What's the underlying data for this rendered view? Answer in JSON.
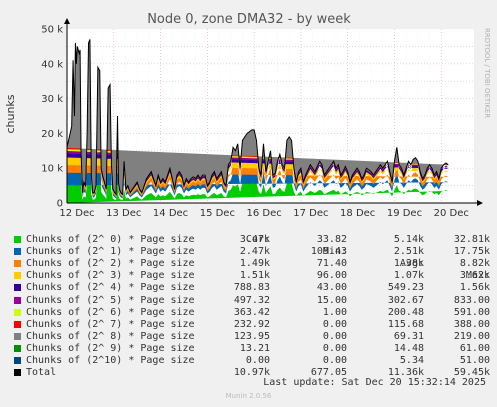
{
  "chart_data": {
    "type": "area",
    "title": "Node 0, zone DMA32 - by week",
    "ylabel": "chunks",
    "ylim": [
      0,
      50000
    ],
    "yticks": [
      {
        "value": 0,
        "label": "0"
      },
      {
        "value": 10000,
        "label": "10 k"
      },
      {
        "value": 20000,
        "label": "20 k"
      },
      {
        "value": 30000,
        "label": "30 k"
      },
      {
        "value": 40000,
        "label": "40 k"
      },
      {
        "value": 50000,
        "label": "50 k"
      }
    ],
    "xlim": [
      0,
      8.7
    ],
    "xticks": [
      {
        "value": 0.0,
        "label": "12 Dec"
      },
      {
        "value": 1.0,
        "label": "13 Dec"
      },
      {
        "value": 2.0,
        "label": "14 Dec"
      },
      {
        "value": 3.0,
        "label": "15 Dec"
      },
      {
        "value": 4.0,
        "label": "16 Dec"
      },
      {
        "value": 5.0,
        "label": "17 Dec"
      },
      {
        "value": 6.0,
        "label": "18 Dec"
      },
      {
        "value": 7.0,
        "label": "19 Dec"
      },
      {
        "value": 8.0,
        "label": "20 Dec"
      }
    ],
    "grid": true,
    "total_profile_x": [
      0.0,
      0.05,
      0.1,
      0.13,
      0.16,
      0.18,
      0.2,
      0.22,
      0.24,
      0.26,
      0.28,
      0.3,
      0.33,
      0.36,
      0.4,
      0.43,
      0.46,
      0.49,
      0.52,
      0.55,
      0.58,
      0.62,
      0.66,
      0.7,
      0.73,
      0.76,
      0.8,
      0.84,
      0.88,
      0.92,
      0.95,
      0.98,
      1.02,
      1.05,
      1.08,
      1.1,
      1.12,
      1.15,
      1.19,
      1.22,
      1.26,
      1.3,
      1.35,
      1.4,
      1.45,
      1.5,
      1.55,
      1.6,
      1.65,
      1.7,
      1.75,
      1.8,
      1.85,
      1.9,
      1.95,
      2.0,
      2.05,
      2.1,
      2.15,
      2.2,
      2.25,
      2.3,
      2.35,
      2.4,
      2.45,
      2.5,
      2.55,
      2.6,
      2.65,
      2.7,
      2.75,
      2.8,
      2.85,
      2.9,
      2.95,
      3.0,
      3.05,
      3.1,
      3.15,
      3.2,
      3.25,
      3.3,
      3.35,
      3.4,
      3.45,
      3.5,
      3.55,
      3.6,
      3.65,
      3.7,
      3.75,
      3.8,
      3.85,
      3.9,
      3.95,
      4.0,
      4.05,
      4.1,
      4.15,
      4.2,
      4.25,
      4.3,
      4.35,
      4.4,
      4.45,
      4.5,
      4.55,
      4.6,
      4.65,
      4.7,
      4.75,
      4.8,
      4.85,
      4.9,
      4.95,
      5.0,
      5.05,
      5.1,
      5.15,
      5.2,
      5.25,
      5.3,
      5.35,
      5.4,
      5.45,
      5.5,
      5.55,
      5.6,
      5.65,
      5.7,
      5.75,
      5.8,
      5.85,
      5.9,
      5.95,
      6.0,
      6.05,
      6.1,
      6.15,
      6.2,
      6.25,
      6.3,
      6.35,
      6.4,
      6.45,
      6.5,
      6.55,
      6.6,
      6.65,
      6.7,
      6.75,
      6.8,
      6.85,
      6.9,
      6.95,
      7.0,
      7.05,
      7.1,
      7.15,
      7.2,
      7.25,
      7.3,
      7.35,
      7.4,
      7.45,
      7.5,
      7.55,
      7.6,
      7.65,
      7.7,
      7.75,
      7.8,
      7.85,
      7.9,
      7.95,
      8.0,
      8.05,
      8.1,
      8.15,
      8.2,
      8.25,
      8.3,
      8.35,
      8.4,
      8.45,
      8.5
    ],
    "total_profile_y": [
      16000,
      19000,
      22000,
      41000,
      25000,
      46000,
      40000,
      45000,
      44000,
      43000,
      44000,
      15000,
      3000,
      6000,
      5000,
      20000,
      46000,
      47000,
      8000,
      3000,
      3000,
      5000,
      39000,
      38000,
      10000,
      8000,
      6000,
      4000,
      33000,
      34000,
      11000,
      4000,
      3000,
      2500,
      25000,
      6000,
      4000,
      3000,
      2500,
      12000,
      4000,
      5000,
      3000,
      4000,
      5000,
      6000,
      4000,
      3000,
      5000,
      7000,
      8000,
      9000,
      7000,
      5000,
      8000,
      6000,
      7000,
      6000,
      8000,
      10000,
      7000,
      4000,
      8000,
      9000,
      8000,
      5000,
      7000,
      6000,
      7000,
      7500,
      7000,
      8000,
      7000,
      8000,
      8000,
      5000,
      6000,
      8000,
      9000,
      7000,
      8000,
      9000,
      6000,
      5000,
      11000,
      12000,
      16000,
      15000,
      17000,
      10000,
      18000,
      19000,
      20000,
      20500,
      21000,
      21000,
      18000,
      10000,
      8000,
      17000,
      9000,
      12000,
      15000,
      8000,
      8500,
      12000,
      14000,
      11000,
      10000,
      18000,
      19000,
      18000,
      10000,
      6000,
      9000,
      10000,
      6000,
      8000,
      9500,
      11000,
      10000,
      9000,
      10500,
      12000,
      11000,
      8000,
      9000,
      10000,
      11000,
      12000,
      10000,
      11000,
      8000,
      9000,
      10500,
      9000,
      6000,
      8000,
      9000,
      10000,
      9000,
      7000,
      8000,
      10000,
      9500,
      9000,
      8000,
      9000,
      10000,
      11000,
      10000,
      11000,
      12000,
      9000,
      6000,
      12000,
      16000,
      11000,
      10000,
      8000,
      10000,
      12000,
      11000,
      12500,
      13000,
      12000,
      9000,
      7000,
      8000,
      10000,
      11000,
      10000,
      8000,
      9000,
      7000,
      10000,
      11000,
      11500,
      11000
    ],
    "series": [
      {
        "name": "Chunks of (2^ 0) * Page size",
        "color": "#00cc00",
        "share": 0.318,
        "cur": "3.47k",
        "min": "33.82",
        "avg": "5.14k",
        "max": "32.81k"
      },
      {
        "name": "Chunks of (2^ 1) * Page size",
        "color": "#0066b3",
        "share": 0.226,
        "cur": "2.47k",
        "min": "109.43",
        "avg": "2.51k",
        "max": "17.75k"
      },
      {
        "name": "Chunks of (2^ 2) * Page size",
        "color": "#ff8000",
        "share": 0.136,
        "cur": "1.49k",
        "min": "71.40",
        "avg": "1.38k",
        "max": "8.82k"
      },
      {
        "name": "Chunks of (2^ 3) * Page size",
        "color": "#ffcc00",
        "share": 0.138,
        "cur": "1.51k",
        "min": "96.00",
        "avg": "1.07k",
        "max": "3.62k"
      },
      {
        "name": "Chunks of (2^ 4) * Page size",
        "color": "#330099",
        "share": 0.072,
        "cur": "788.83",
        "min": "43.00",
        "avg": "549.23",
        "max": "1.56k"
      },
      {
        "name": "Chunks of (2^ 5) * Page size",
        "color": "#990099",
        "share": 0.045,
        "cur": "497.32",
        "min": "15.00",
        "avg": "302.67",
        "max": "833.00"
      },
      {
        "name": "Chunks of (2^ 6) * Page size",
        "color": "#ccff00",
        "share": 0.033,
        "cur": "363.42",
        "min": "1.00",
        "avg": "200.48",
        "max": "591.00"
      },
      {
        "name": "Chunks of (2^ 7) * Page size",
        "color": "#ff0000",
        "share": 0.021,
        "cur": "232.92",
        "min": "0.00",
        "avg": "115.68",
        "max": "388.00"
      },
      {
        "name": "Chunks of (2^ 8) * Page size",
        "color": "#808080",
        "share": 0.011,
        "cur": "123.95",
        "min": "0.00",
        "avg": "69.31",
        "max": "219.00"
      },
      {
        "name": "Chunks of (2^ 9) * Page size",
        "color": "#008f00",
        "share": 0.0,
        "cur": "13.21",
        "min": "0.00",
        "avg": "14.48",
        "max": "61.00"
      },
      {
        "name": "Chunks of (2^10) * Page size",
        "color": "#00487d",
        "share": 0.0,
        "cur": "0.00",
        "min": "0.00",
        "avg": "5.34",
        "max": "51.00"
      },
      {
        "name": "Total",
        "color": "#000000",
        "share": 0.0,
        "cur": "10.97k",
        "min": "677.05",
        "avg": "11.36k",
        "max": "59.45k"
      }
    ],
    "legend_headers": {
      "cur": "Cur:",
      "min": "Min:",
      "avg": "Avg:",
      "max": "Max:"
    }
  },
  "watermark": "RRDTOOL / TOBI OETIKER",
  "last_update": "Last update: Sat Dec 20 15:32:14 2025",
  "version": "Munin 2.0.56"
}
